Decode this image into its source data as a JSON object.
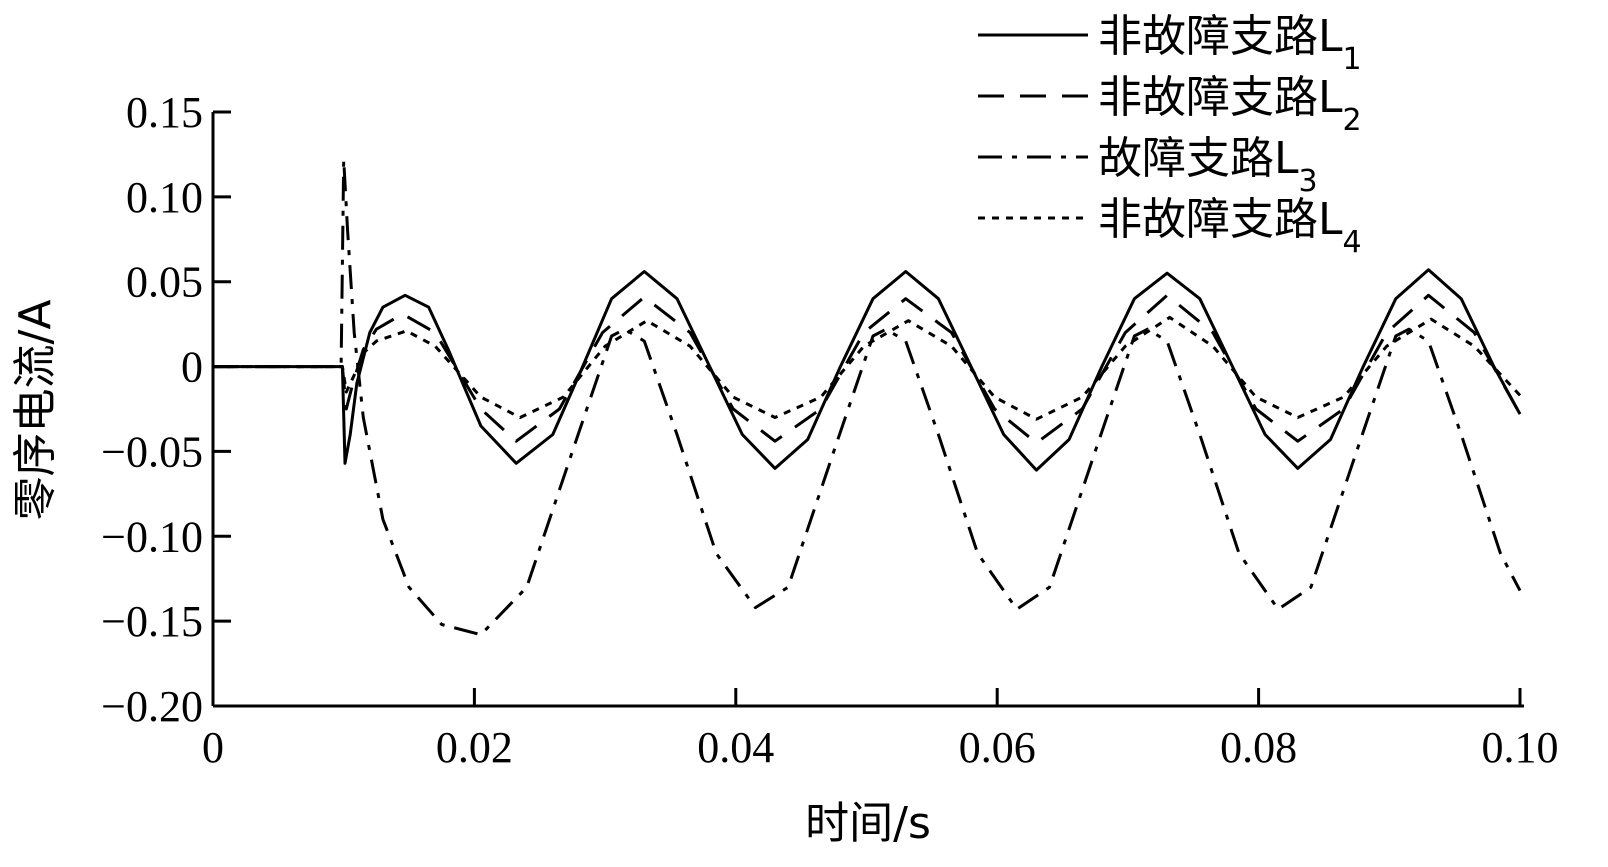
{
  "chart_data": {
    "type": "line",
    "xlabel": "时间/s",
    "ylabel": "零序电流/A",
    "xlim": [
      0,
      0.1
    ],
    "ylim": [
      -0.2,
      0.15
    ],
    "xticks": [
      0,
      0.02,
      0.04,
      0.06,
      0.08,
      0.1
    ],
    "xtick_labels": [
      "0",
      "0.02",
      "0.04",
      "0.06",
      "0.08",
      "0.10"
    ],
    "yticks": [
      0.15,
      0.1,
      0.05,
      0,
      -0.05,
      -0.1,
      -0.15,
      -0.2
    ],
    "ytick_labels": [
      "0.15",
      "0.10",
      "0.05",
      "0",
      "−0.05",
      "−0.10",
      "−0.15",
      "−0.20"
    ],
    "grid": false,
    "legend_position": "top-right",
    "series": [
      {
        "name": "非故障支路L",
        "subscript": "1",
        "style": "solid",
        "x": [
          0,
          0.0099,
          0.0101,
          0.0105,
          0.011,
          0.012,
          0.013,
          0.0147,
          0.0165,
          0.018,
          0.0205,
          0.0232,
          0.026,
          0.028,
          0.0305,
          0.033,
          0.0355,
          0.038,
          0.0405,
          0.043,
          0.0455,
          0.048,
          0.0505,
          0.053,
          0.0555,
          0.058,
          0.0605,
          0.063,
          0.0655,
          0.068,
          0.0705,
          0.073,
          0.0755,
          0.078,
          0.0805,
          0.083,
          0.0855,
          0.088,
          0.0905,
          0.093,
          0.0955,
          0.098,
          0.1
        ],
        "y": [
          0,
          0,
          -0.057,
          -0.04,
          -0.01,
          0.02,
          0.035,
          0.042,
          0.035,
          0.01,
          -0.035,
          -0.057,
          -0.04,
          -0.005,
          0.04,
          0.056,
          0.04,
          0.0,
          -0.04,
          -0.06,
          -0.043,
          0.0,
          0.04,
          0.056,
          0.04,
          0.0,
          -0.04,
          -0.061,
          -0.043,
          0.0,
          0.04,
          0.055,
          0.04,
          0.0,
          -0.04,
          -0.06,
          -0.043,
          0.0,
          0.04,
          0.057,
          0.04,
          0.0,
          -0.028
        ]
      },
      {
        "name": "非故障支路L",
        "subscript": "2",
        "style": "dashed",
        "x": [
          0,
          0.0099,
          0.0102,
          0.0107,
          0.0115,
          0.0125,
          0.0145,
          0.017,
          0.0205,
          0.0232,
          0.0265,
          0.0298,
          0.033,
          0.0365,
          0.0398,
          0.043,
          0.0465,
          0.0498,
          0.053,
          0.0565,
          0.0598,
          0.063,
          0.0665,
          0.0698,
          0.073,
          0.0765,
          0.0798,
          0.083,
          0.0865,
          0.0898,
          0.093,
          0.0965,
          0.1
        ],
        "y": [
          0,
          0,
          -0.025,
          -0.01,
          0.01,
          0.022,
          0.031,
          0.02,
          -0.025,
          -0.044,
          -0.025,
          0.02,
          0.041,
          0.02,
          -0.025,
          -0.044,
          -0.025,
          0.02,
          0.04,
          0.02,
          -0.025,
          -0.045,
          -0.025,
          0.02,
          0.042,
          0.02,
          -0.025,
          -0.044,
          -0.025,
          0.02,
          0.042,
          0.02,
          -0.028
        ]
      },
      {
        "name": "故障支路L",
        "subscript": "3",
        "style": "dashdot",
        "x": [
          0,
          0.0098,
          0.01,
          0.0103,
          0.0108,
          0.0115,
          0.013,
          0.015,
          0.0175,
          0.0205,
          0.024,
          0.0275,
          0.0305,
          0.0315,
          0.033,
          0.0355,
          0.0385,
          0.0415,
          0.044,
          0.0475,
          0.0505,
          0.0515,
          0.053,
          0.0555,
          0.0585,
          0.0615,
          0.064,
          0.0675,
          0.0705,
          0.0715,
          0.073,
          0.0755,
          0.0785,
          0.0815,
          0.084,
          0.0875,
          0.0905,
          0.0915,
          0.093,
          0.0955,
          0.0985,
          0.1
        ],
        "y": [
          0,
          0,
          0.122,
          0.08,
          0.02,
          -0.03,
          -0.09,
          -0.13,
          -0.152,
          -0.158,
          -0.13,
          -0.05,
          0.018,
          0.022,
          0.015,
          -0.04,
          -0.11,
          -0.142,
          -0.13,
          -0.05,
          0.018,
          0.022,
          0.015,
          -0.04,
          -0.11,
          -0.143,
          -0.13,
          -0.05,
          0.018,
          0.022,
          0.015,
          -0.04,
          -0.11,
          -0.143,
          -0.13,
          -0.05,
          0.018,
          0.022,
          0.015,
          -0.04,
          -0.11,
          -0.132
        ]
      },
      {
        "name": "非故障支路L",
        "subscript": "4",
        "style": "dotted",
        "x": [
          0,
          0.0099,
          0.0102,
          0.0108,
          0.0115,
          0.0125,
          0.0148,
          0.017,
          0.0205,
          0.0235,
          0.0268,
          0.03,
          0.0332,
          0.0365,
          0.0398,
          0.043,
          0.0465,
          0.0498,
          0.0532,
          0.0565,
          0.0598,
          0.063,
          0.0665,
          0.0698,
          0.0732,
          0.0765,
          0.0798,
          0.083,
          0.0865,
          0.0898,
          0.0932,
          0.0965,
          0.1
        ],
        "y": [
          0,
          0,
          -0.015,
          -0.005,
          0.008,
          0.015,
          0.021,
          0.012,
          -0.018,
          -0.03,
          -0.018,
          0.012,
          0.027,
          0.012,
          -0.018,
          -0.03,
          -0.018,
          0.012,
          0.027,
          0.012,
          -0.018,
          -0.031,
          -0.018,
          0.012,
          0.029,
          0.012,
          -0.018,
          -0.03,
          -0.018,
          0.012,
          0.028,
          0.012,
          -0.017
        ]
      }
    ]
  }
}
